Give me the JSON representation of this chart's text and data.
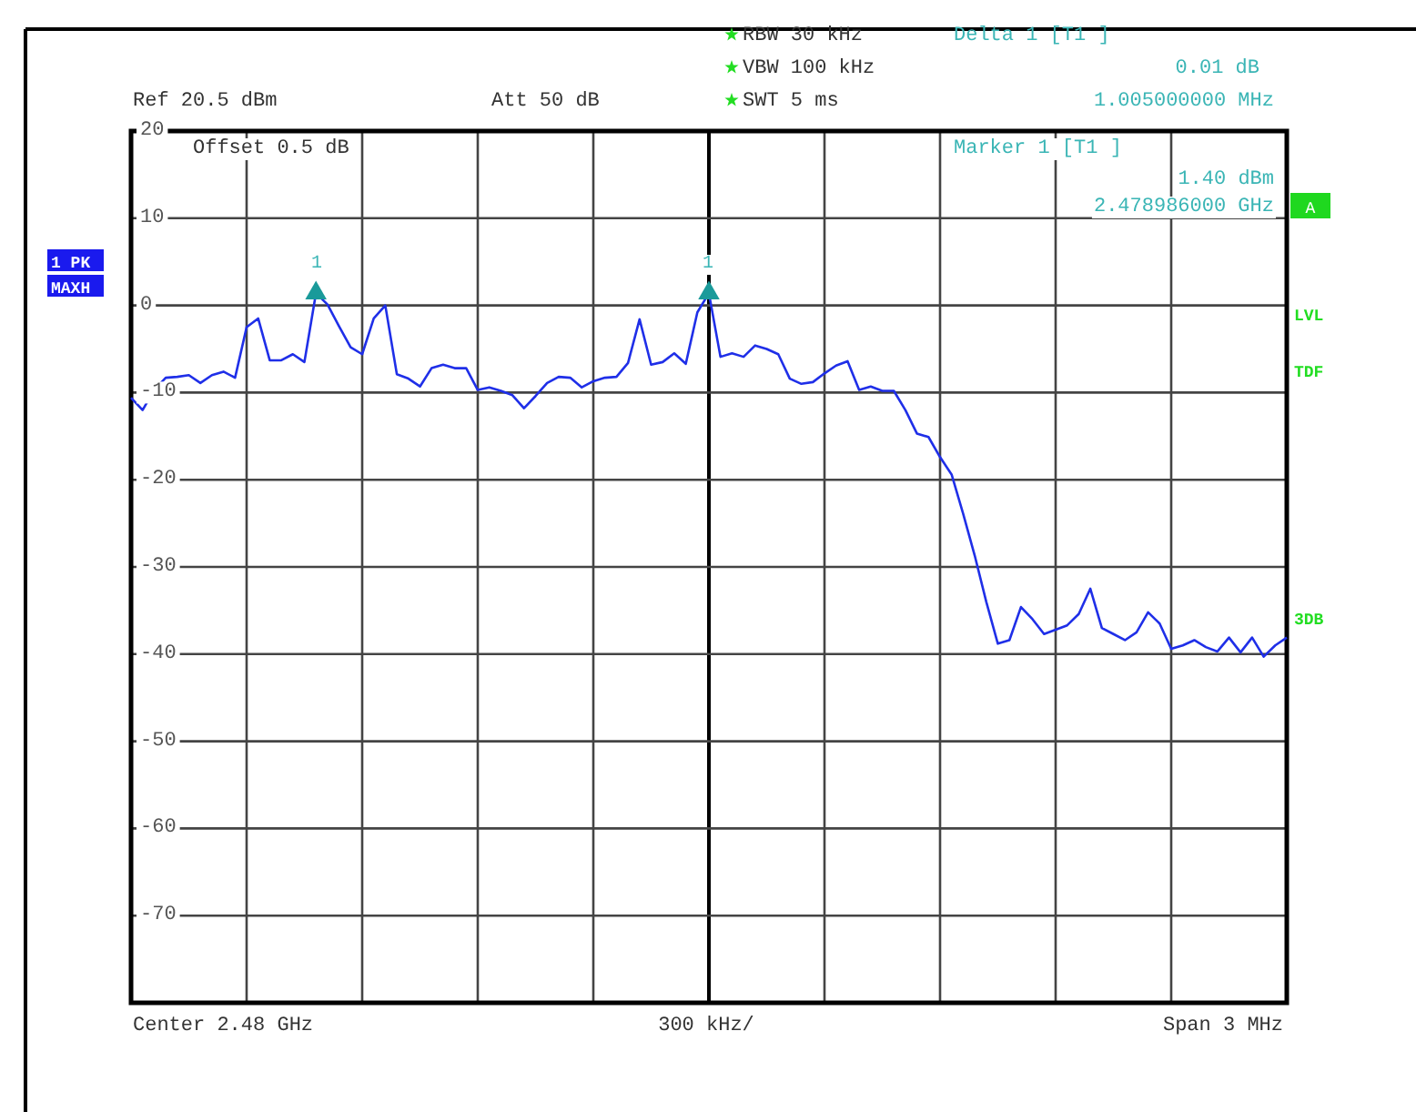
{
  "chart_data": {
    "type": "line",
    "grid": true,
    "tick_labels": "y",
    "ylim": [
      -80,
      20
    ],
    "yticks": [
      20,
      10,
      0,
      -10,
      -20,
      -30,
      -40,
      -50,
      -60,
      -70,
      {
        "value": -80,
        "label": null
      }
    ],
    "categories": [
      null,
      null,
      null,
      null,
      null,
      null,
      null,
      null,
      null,
      null,
      null,
      null,
      null,
      null,
      null,
      null,
      null,
      null,
      null,
      null,
      null,
      null,
      null,
      null,
      null,
      null,
      null,
      null,
      null,
      null,
      null,
      null,
      null,
      null,
      null,
      null,
      null,
      null,
      null,
      null,
      null,
      null,
      null,
      null,
      null,
      null,
      null,
      null,
      null,
      null,
      null,
      null,
      null,
      null,
      null,
      null,
      null,
      null,
      null,
      null,
      null,
      null,
      null,
      null,
      null,
      null,
      null,
      null,
      null,
      null,
      null,
      null,
      null,
      null,
      null,
      null,
      null,
      null,
      null,
      null,
      null,
      null,
      null,
      null,
      null,
      null,
      null,
      null,
      null,
      null,
      null,
      null,
      null,
      null,
      null,
      null,
      null,
      null,
      null,
      null,
      null
    ],
    "series": [
      {
        "color": "#1f2fe8",
        "values": [
          -10.6,
          -12,
          -9.7,
          -8.3,
          -8.2,
          -8,
          -8.9,
          -8,
          -7.6,
          -8.3,
          -2.5,
          -1.5,
          -6.3,
          -6.3,
          -5.6,
          -6.5,
          1.4,
          0.1,
          -2.4,
          -4.8,
          -5.6,
          -1.5,
          0,
          -7.9,
          -8.4,
          -9.3,
          -7.2,
          -6.8,
          -7.2,
          -7.2,
          -9.7,
          -9.4,
          -9.8,
          -10.3,
          -11.8,
          -10.4,
          -8.9,
          -8.2,
          -8.3,
          -9.4,
          -8.7,
          -8.3,
          -8.2,
          -6.6,
          -1.6,
          -6.8,
          -6.5,
          -5.5,
          -6.7,
          -0.8,
          1.4,
          -5.9,
          -5.5,
          -5.9,
          -4.6,
          -5,
          -5.6,
          -8.4,
          -9,
          -8.8,
          -7.8,
          -6.9,
          -6.4,
          -9.7,
          -9.3,
          -9.8,
          -9.8,
          -12,
          -14.7,
          -15.1,
          -17.4,
          -19.4,
          -23.9,
          -28.7,
          -34,
          -38.8,
          -38.4,
          -34.6,
          -36,
          -37.7,
          -37.2,
          -36.7,
          -35.4,
          -32.5,
          -37,
          -37.7,
          -38.4,
          -37.5,
          -35.2,
          -36.5,
          -39.4,
          -39,
          -38.4,
          -39.2,
          -39.7,
          -38.1,
          -39.8,
          -38.1,
          -40.3,
          -39,
          -38.1
        ]
      },
      {
        "type": "scatter",
        "marker": "triangle",
        "color": "#1a9a9a",
        "values": [
          null,
          null,
          null,
          null,
          null,
          null,
          null,
          null,
          null,
          null,
          null,
          null,
          null,
          null,
          null,
          null,
          1.4,
          null,
          null,
          null,
          null,
          null,
          null,
          null,
          null,
          null,
          null,
          null,
          null,
          null,
          null,
          null,
          null,
          null,
          null,
          null,
          null,
          null,
          null,
          null,
          null,
          null,
          null,
          null,
          null,
          null,
          null,
          null,
          null,
          null,
          1.4,
          null,
          null,
          null,
          null,
          null,
          null,
          null,
          null,
          null,
          null,
          null,
          null,
          null,
          null,
          null,
          null,
          null,
          null,
          null,
          null,
          null,
          null,
          null,
          null,
          null,
          null,
          null,
          null,
          null,
          null,
          null,
          null,
          null,
          null,
          null,
          null,
          null,
          null,
          null,
          null,
          null,
          null,
          null,
          null,
          null,
          null,
          null,
          null,
          null,
          null
        ]
      }
    ],
    "marker": "none",
    "annotations": [
      "Ref  20.5 dBm",
      "Att  50 dB",
      "RBW 30 kHz",
      "VBW 100 kHz",
      "SWT 5 ms",
      "Delta 1 [T1 ]",
      "0.01 dB",
      "1.005000000 MHz",
      "Offset  0.5 dB",
      "Marker 1 [T1 ]",
      "1.40 dBm",
      "2.478986000 GHz",
      "1 PK",
      "MAXH",
      "A",
      "LVL",
      "TDF",
      "3DB",
      "Center 2.48 GHz",
      "300 kHz/",
      "Span 3 MHz",
      "1",
      "1"
    ]
  }
}
